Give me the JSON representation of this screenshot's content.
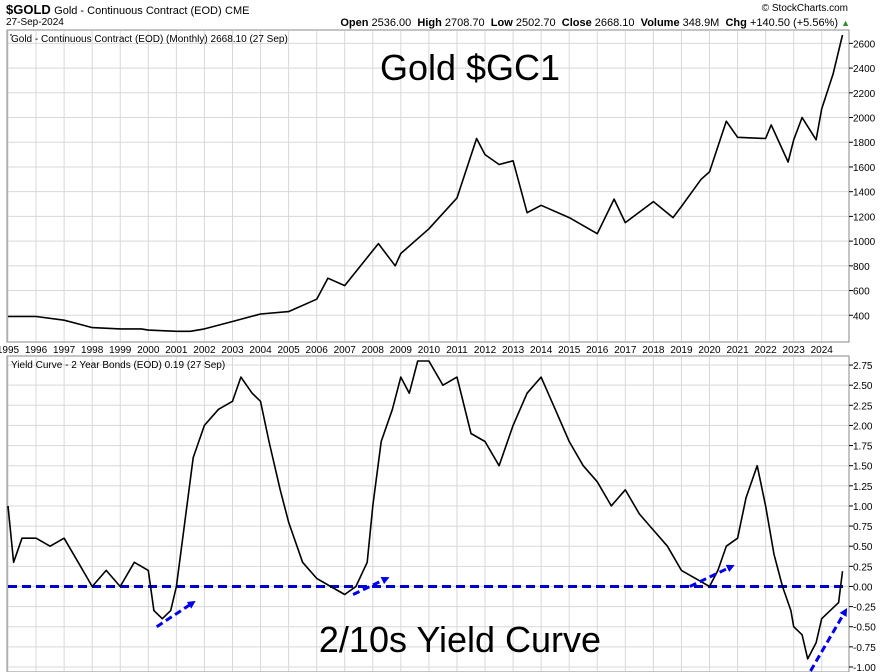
{
  "header": {
    "symbol": "$GOLD",
    "description": "Gold - Continuous Contract (EOD)",
    "exchange": "CME",
    "date": "27-Sep-2024",
    "credit": "© StockCharts.com",
    "open_label": "Open",
    "open": "2536.00",
    "high_label": "High",
    "high": "2708.70",
    "low_label": "Low",
    "low": "2502.70",
    "close_label": "Close",
    "close": "2668.10",
    "volume_label": "Volume",
    "volume": "348.9M",
    "chg_label": "Chg",
    "chg": "+140.50 (+5.56%)",
    "chg_arrow": "▲"
  },
  "colors": {
    "line": "#000000",
    "zero_line": "#0000cc",
    "arrow": "#0000ee",
    "grid": "#d8d8d8"
  },
  "chart_data": [
    {
      "type": "line",
      "legend": "Gold - Continuous Contract (EOD) (Monthly) 2668.10 (27 Sep)",
      "annotation": "Gold $GC1",
      "x_tick_labels": [
        "1995",
        "1996",
        "1997",
        "1998",
        "1999",
        "2000",
        "2001",
        "2002",
        "2003",
        "2004",
        "2005",
        "2006",
        "2007",
        "2008",
        "2009",
        "2010",
        "2011",
        "2012",
        "2013",
        "2014",
        "2015",
        "2016",
        "2017",
        "2018",
        "2019",
        "2020",
        "2021",
        "2022",
        "2023",
        "2024"
      ],
      "ylim": [
        200,
        2700
      ],
      "y_ticks": [
        "400",
        "600",
        "800",
        "1000",
        "1200",
        "1400",
        "1600",
        "1800",
        "2000",
        "2200",
        "2400",
        "2600"
      ],
      "series": [
        {
          "x": [
            1995,
            1996,
            1997,
            1997.5,
            1998,
            1999,
            1999.75,
            2000,
            2001,
            2001.5,
            2002,
            2003,
            2004,
            2005,
            2006,
            2006.4,
            2007,
            2008.2,
            2008.8,
            2009,
            2010,
            2011,
            2011.7,
            2012,
            2012.5,
            2013,
            2013.5,
            2014,
            2015,
            2016,
            2016.6,
            2017,
            2018,
            2018.7,
            2019,
            2019.7,
            2020,
            2020.6,
            2021,
            2022,
            2022.2,
            2022.8,
            2023,
            2023.3,
            2023.8,
            2024,
            2024.4,
            2024.74
          ],
          "y": [
            390,
            390,
            360,
            330,
            300,
            290,
            290,
            280,
            270,
            270,
            290,
            350,
            410,
            430,
            530,
            700,
            640,
            980,
            800,
            900,
            1100,
            1350,
            1830,
            1700,
            1620,
            1650,
            1230,
            1290,
            1190,
            1060,
            1340,
            1150,
            1320,
            1190,
            1280,
            1500,
            1560,
            1970,
            1840,
            1830,
            1940,
            1640,
            1820,
            2000,
            1820,
            2070,
            2350,
            2668
          ]
        }
      ]
    },
    {
      "type": "line",
      "legend": "Yield Curve - 2 Year Bonds (EOD) 0.19 (27 Sep)",
      "annotation": "2/10s Yield Curve",
      "ylim": [
        -1.05,
        2.85
      ],
      "y_ticks": [
        "2.75",
        "2.50",
        "2.25",
        "2.00",
        "1.75",
        "1.50",
        "1.25",
        "1.00",
        "0.75",
        "0.50",
        "0.25",
        "0.00",
        "-0.25",
        "-0.50",
        "-0.75",
        "-1.00"
      ],
      "zero_line": 0,
      "series": [
        {
          "x": [
            1995,
            1995.2,
            1995.5,
            1996,
            1996.5,
            1997,
            1997.5,
            1998,
            1998.5,
            1999,
            1999.5,
            2000,
            2000.2,
            2000.5,
            2000.8,
            2001,
            2001.3,
            2001.6,
            2002,
            2002.5,
            2003,
            2003.3,
            2003.7,
            2004,
            2004.3,
            2004.7,
            2005,
            2005.5,
            2006,
            2006.5,
            2007,
            2007.4,
            2007.8,
            2008,
            2008.3,
            2008.7,
            2009,
            2009.3,
            2009.6,
            2010,
            2010.5,
            2011,
            2011.5,
            2012,
            2012.5,
            2013,
            2013.5,
            2014,
            2014.5,
            2015,
            2015.5,
            2016,
            2016.5,
            2017,
            2017.5,
            2018,
            2018.5,
            2019,
            2019.5,
            2020,
            2020.3,
            2020.6,
            2021,
            2021.3,
            2021.7,
            2022,
            2022.3,
            2022.6,
            2022.9,
            2023,
            2023.3,
            2023.5,
            2023.8,
            2024,
            2024.3,
            2024.6,
            2024.74
          ],
          "y": [
            1.0,
            0.3,
            0.6,
            0.6,
            0.5,
            0.6,
            0.3,
            0.0,
            0.2,
            0.0,
            0.3,
            0.2,
            -0.3,
            -0.4,
            -0.3,
            0.0,
            0.8,
            1.6,
            2.0,
            2.2,
            2.3,
            2.6,
            2.4,
            2.3,
            1.8,
            1.2,
            0.8,
            0.3,
            0.1,
            0.0,
            -0.1,
            0.0,
            0.3,
            1.0,
            1.8,
            2.2,
            2.6,
            2.4,
            2.8,
            2.8,
            2.5,
            2.6,
            1.9,
            1.8,
            1.5,
            2.0,
            2.4,
            2.6,
            2.2,
            1.8,
            1.5,
            1.3,
            1.0,
            1.2,
            0.9,
            0.7,
            0.5,
            0.2,
            0.1,
            0.0,
            0.2,
            0.5,
            0.6,
            1.1,
            1.5,
            1.0,
            0.4,
            0.0,
            -0.3,
            -0.5,
            -0.6,
            -0.9,
            -0.7,
            -0.4,
            -0.3,
            -0.2,
            0.19
          ]
        }
      ],
      "arrows": [
        {
          "from": [
            2000.3,
            -0.5
          ],
          "to": [
            2001.6,
            -0.2
          ]
        },
        {
          "from": [
            2007.3,
            -0.1
          ],
          "to": [
            2008.5,
            0.1
          ]
        },
        {
          "from": [
            2019.3,
            0.0
          ],
          "to": [
            2020.8,
            0.25
          ]
        },
        {
          "from": [
            2023.6,
            -1.05
          ],
          "to": [
            2024.85,
            -0.3
          ]
        }
      ]
    }
  ]
}
